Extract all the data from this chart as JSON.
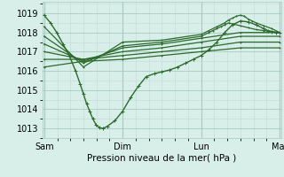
{
  "bg_color": "#d8eee8",
  "line_color": "#2d6a2d",
  "grid_color_major": "#a8c8c0",
  "grid_color_minor": "#c0dcd8",
  "marker": "+",
  "xlabel": "Pression niveau de la mer( hPa )",
  "xtick_labels": [
    "Sam",
    "Dim",
    "Lun",
    "Mar"
  ],
  "ylim": [
    1012.5,
    1019.6
  ],
  "yticks": [
    1013,
    1014,
    1015,
    1016,
    1017,
    1018,
    1019
  ],
  "xlim": [
    -0.02,
    3.02
  ],
  "lines": [
    {
      "x": [
        0.0,
        0.08,
        0.16,
        0.24,
        0.32,
        0.4,
        0.46,
        0.5,
        0.54,
        0.58,
        0.62,
        0.66,
        0.7,
        0.75,
        0.8,
        0.9,
        1.0,
        1.1,
        1.2,
        1.3,
        1.4,
        1.5,
        1.6,
        1.7,
        1.8,
        1.9,
        2.0,
        2.1,
        2.2,
        2.3,
        2.4,
        2.5,
        2.6,
        2.7,
        2.8,
        2.85,
        2.9,
        2.95,
        3.0
      ],
      "y": [
        1018.9,
        1018.5,
        1018.0,
        1017.4,
        1016.8,
        1016.0,
        1015.3,
        1014.8,
        1014.3,
        1013.9,
        1013.5,
        1013.2,
        1013.05,
        1013.0,
        1013.1,
        1013.4,
        1013.9,
        1014.6,
        1015.2,
        1015.7,
        1015.85,
        1015.95,
        1016.05,
        1016.2,
        1016.4,
        1016.6,
        1016.8,
        1017.1,
        1017.5,
        1018.0,
        1018.4,
        1018.6,
        1018.55,
        1018.4,
        1018.2,
        1018.1,
        1018.05,
        1018.0,
        1018.0
      ],
      "lw": 1.0,
      "ms": 2.5
    },
    {
      "x": [
        0.0,
        0.5,
        1.0,
        1.5,
        2.0,
        2.1,
        2.2,
        2.3,
        2.35,
        2.4,
        2.45,
        2.5,
        2.55,
        2.6,
        2.65,
        2.7,
        2.8,
        2.9,
        3.0
      ],
      "y": [
        1018.3,
        1016.2,
        1017.5,
        1017.6,
        1017.9,
        1018.1,
        1018.3,
        1018.5,
        1018.65,
        1018.75,
        1018.85,
        1018.9,
        1018.85,
        1018.7,
        1018.6,
        1018.5,
        1018.35,
        1018.2,
        1018.0
      ],
      "lw": 0.9,
      "ms": 2.0
    },
    {
      "x": [
        0.0,
        0.5,
        1.0,
        1.5,
        2.0,
        2.1,
        2.15,
        2.2,
        2.25,
        2.3,
        2.35,
        2.4,
        2.5,
        2.6,
        2.7,
        2.8,
        2.9,
        3.0
      ],
      "y": [
        1017.8,
        1016.4,
        1017.3,
        1017.5,
        1017.8,
        1018.0,
        1018.1,
        1018.2,
        1018.3,
        1018.4,
        1018.5,
        1018.45,
        1018.35,
        1018.25,
        1018.15,
        1018.1,
        1018.05,
        1018.0
      ],
      "lw": 0.9,
      "ms": 2.0
    },
    {
      "x": [
        0.0,
        0.5,
        1.0,
        1.5,
        2.0,
        2.5,
        3.0
      ],
      "y": [
        1017.4,
        1016.5,
        1017.2,
        1017.4,
        1017.7,
        1018.0,
        1018.0
      ],
      "lw": 0.9,
      "ms": 2.0
    },
    {
      "x": [
        0.0,
        0.5,
        1.0,
        1.5,
        2.0,
        2.5,
        3.0
      ],
      "y": [
        1017.0,
        1016.6,
        1017.0,
        1017.2,
        1017.5,
        1017.8,
        1017.8
      ],
      "lw": 0.9,
      "ms": 2.0
    },
    {
      "x": [
        0.0,
        0.5,
        1.0,
        1.5,
        2.0,
        2.5,
        3.0
      ],
      "y": [
        1016.6,
        1016.6,
        1016.8,
        1017.0,
        1017.2,
        1017.5,
        1017.5
      ],
      "lw": 0.9,
      "ms": 2.0
    },
    {
      "x": [
        0.0,
        0.5,
        1.0,
        1.5,
        2.0,
        2.5,
        3.0
      ],
      "y": [
        1016.2,
        1016.5,
        1016.6,
        1016.8,
        1017.0,
        1017.2,
        1017.2
      ],
      "lw": 0.9,
      "ms": 1.5
    }
  ],
  "vlines": [
    0,
    1,
    2,
    3
  ]
}
